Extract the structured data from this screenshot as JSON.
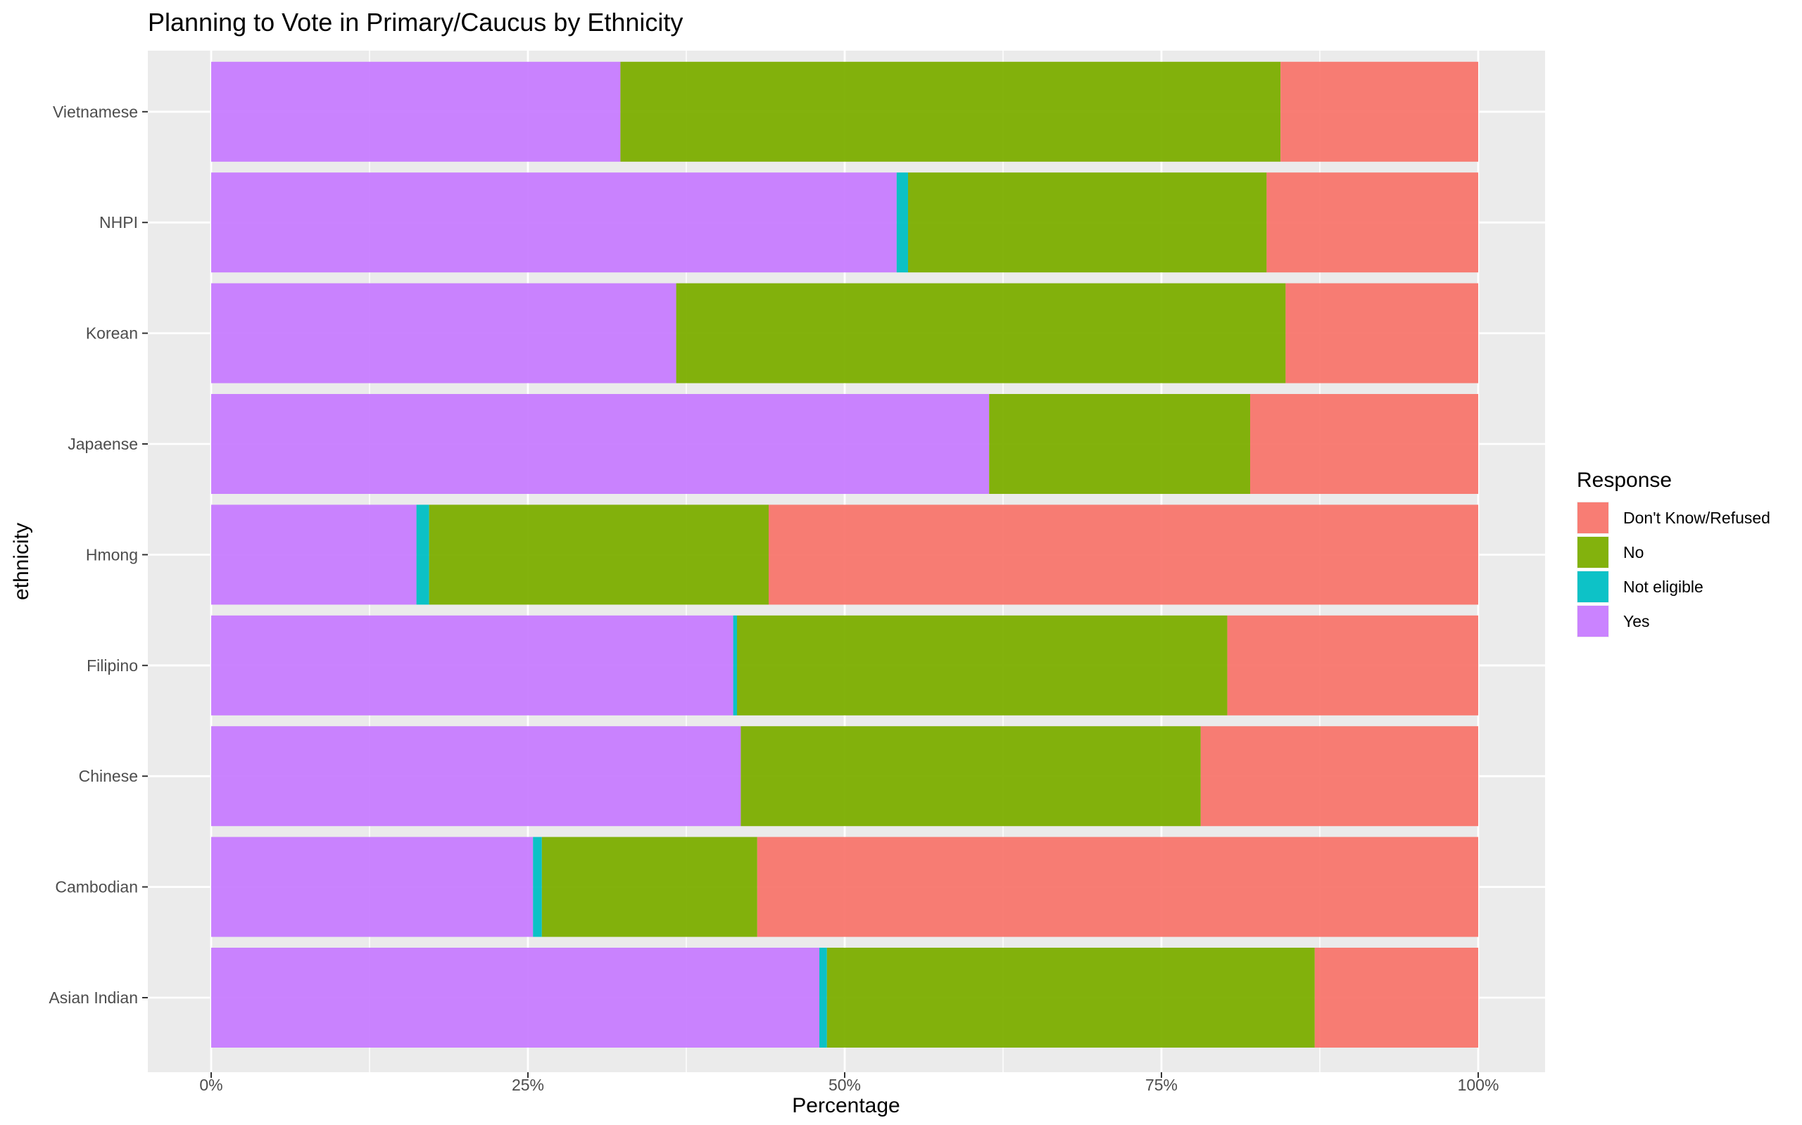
{
  "chart_data": {
    "type": "bar",
    "orientation": "horizontal",
    "stacked": "percent",
    "title": "Planning to Vote in Primary/Caucus by Ethnicity",
    "xlabel": "Percentage",
    "ylabel": "ethnicity",
    "xlim": [
      0,
      100
    ],
    "xticks": [
      "0%",
      "25%",
      "50%",
      "75%",
      "100%"
    ],
    "grid": true,
    "legend": {
      "title": "Response",
      "position": "right"
    },
    "categories": [
      "Asian Indian",
      "Cambodian",
      "Chinese",
      "Filipino",
      "Hmong",
      "Japaense",
      "Korean",
      "NHPI",
      "Vietnamese"
    ],
    "series": [
      {
        "name": "Don't Know/Refused",
        "color": "#F8766D",
        "values": [
          12.9,
          56.9,
          21.9,
          19.8,
          56.0,
          18.0,
          15.2,
          16.7,
          15.6
        ]
      },
      {
        "name": "No",
        "color": "#7CAE00",
        "values": [
          38.5,
          17.0,
          36.3,
          38.7,
          26.8,
          20.6,
          48.1,
          28.3,
          52.1
        ]
      },
      {
        "name": "Not eligible",
        "color": "#00BFC4",
        "values": [
          0.6,
          0.7,
          0.0,
          0.3,
          1.0,
          0.0,
          0.0,
          0.9,
          0.0
        ]
      },
      {
        "name": "Yes",
        "color": "#C77CFF",
        "values": [
          48.0,
          25.4,
          41.8,
          41.2,
          16.2,
          61.4,
          36.7,
          54.1,
          32.3
        ]
      }
    ]
  }
}
